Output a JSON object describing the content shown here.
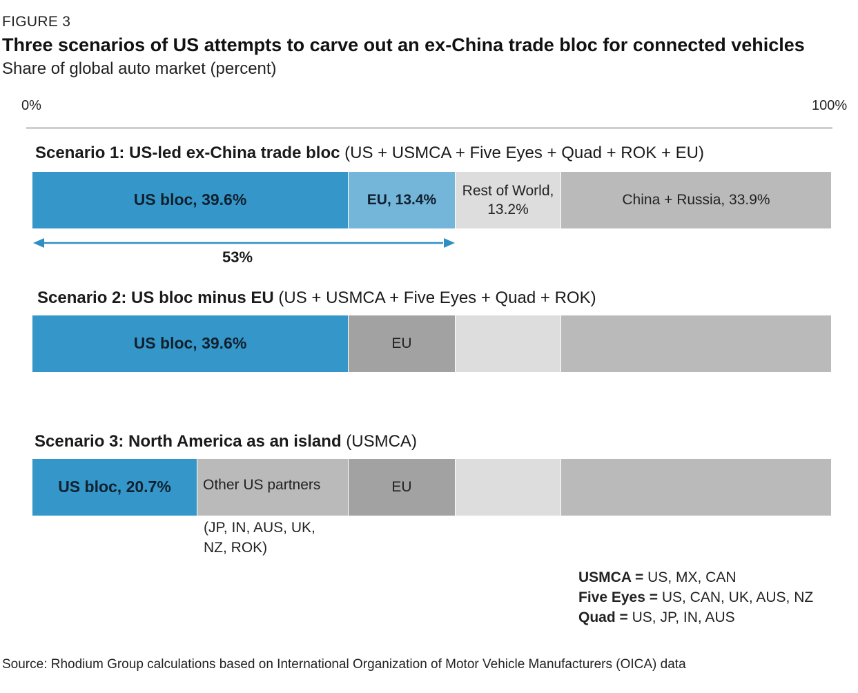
{
  "figure_label": "FIGURE 3",
  "chart_data": {
    "type": "bar",
    "orientation": "horizontal-stacked",
    "title": "Three scenarios of US attempts to carve out an ex-China trade bloc for connected vehicles",
    "subtitle": "Share of global auto market (percent)",
    "axis": {
      "min_label": "0%",
      "max_label": "100%",
      "range": [
        0,
        100
      ]
    },
    "scenarios": [
      {
        "heading_bold": "Scenario 1: US-led ex-China trade bloc",
        "heading_rest": " (US + USMCA + Five Eyes + Quad + ROK + EU)",
        "segments": [
          {
            "label": "US bloc, 39.6%",
            "value": 39.6,
            "color": "#3597c9",
            "bold": true
          },
          {
            "label": "EU, 13.4%",
            "value": 13.4,
            "color": "#74b5da",
            "bold": true
          },
          {
            "label": "Rest of World, 13.2%",
            "value": 13.2,
            "color": "#dddddd",
            "bold": false
          },
          {
            "label": "China + Russia, 33.9%",
            "value": 33.9,
            "color": "#bababa",
            "bold": false
          }
        ]
      },
      {
        "heading_bold": "Scenario 2: US bloc minus EU",
        "heading_rest": " (US + USMCA + Five Eyes + Quad + ROK)",
        "segments": [
          {
            "label": "US bloc, 39.6%",
            "value": 39.6,
            "color": "#3597c9",
            "bold": true
          },
          {
            "label": "EU",
            "value": 13.4,
            "color": "#a2a2a2",
            "bold": false
          },
          {
            "label": "",
            "value": 13.2,
            "color": "#dddddd",
            "bold": false
          },
          {
            "label": "",
            "value": 33.9,
            "color": "#bababa",
            "bold": false
          }
        ]
      },
      {
        "heading_bold": "Scenario 3: North America as an island",
        "heading_rest": " (USMCA)",
        "segments": [
          {
            "label": "US bloc, 20.7%",
            "value": 20.7,
            "color": "#3597c9",
            "bold": true
          },
          {
            "label": "Other US partners",
            "value": 18.9,
            "color": "#bababa",
            "bold": false
          },
          {
            "label": "EU",
            "value": 13.4,
            "color": "#a2a2a2",
            "bold": false
          },
          {
            "label": "",
            "value": 13.2,
            "color": "#dddddd",
            "bold": false
          },
          {
            "label": "",
            "value": 33.9,
            "color": "#bababa",
            "bold": false
          }
        ]
      }
    ],
    "annotations": {
      "span_label": "53%",
      "span_value": 53,
      "partners_note": "(JP, IN, AUS, UK, NZ, ROK)"
    },
    "legend": [
      {
        "key": "USMCA =",
        "value": " US, MX, CAN"
      },
      {
        "key": "Five Eyes =",
        "value": " US, CAN, UK, AUS, NZ"
      },
      {
        "key": "Quad =",
        "value": " US, JP, IN, AUS"
      }
    ],
    "source": "Source: Rhodium Group calculations based on International Organization of Motor Vehicle Manufacturers (OICA) data"
  }
}
